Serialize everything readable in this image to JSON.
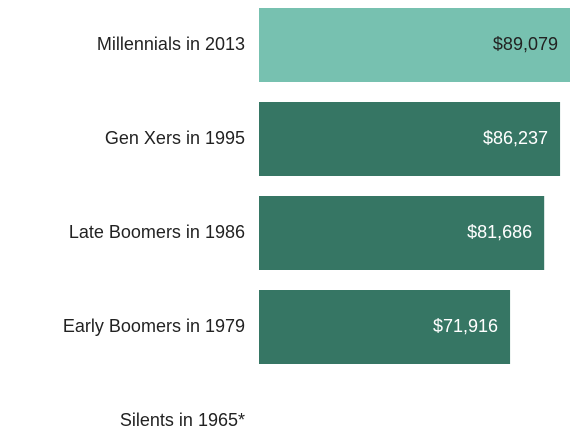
{
  "chart_data": {
    "type": "barh",
    "categories": [
      "Millennials in 2013",
      "Gen Xers in 1995",
      "Late Boomers in 1986",
      "Early Boomers in 1979",
      "Silents in 1965*"
    ],
    "values": [
      89079,
      86237,
      81686,
      71916,
      null
    ],
    "value_labels": [
      "$89,079",
      "$86,237",
      "$81,686",
      "$71,916",
      null
    ],
    "colors": [
      "#77c1b0",
      "#367664",
      "#367664",
      "#367664",
      "#367664"
    ],
    "value_label_colors": [
      "#222222",
      "#ffffff",
      "#ffffff",
      "#ffffff",
      "#ffffff"
    ]
  }
}
